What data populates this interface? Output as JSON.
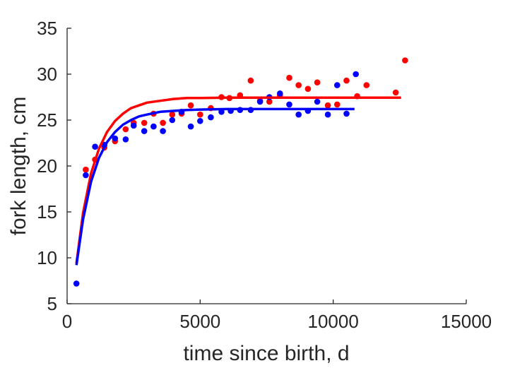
{
  "chart_data": {
    "type": "scatter",
    "xlabel": "time since birth, d",
    "ylabel": "fork length, cm",
    "xlim": [
      0,
      15000
    ],
    "ylim": [
      5,
      35
    ],
    "xticks": [
      0,
      5000,
      10000,
      15000
    ],
    "yticks": [
      5,
      10,
      15,
      20,
      25,
      30,
      35
    ],
    "grid": false,
    "legend": "none",
    "series": [
      {
        "color": "#ff0000",
        "points": {
          "x": [
            700,
            1050,
            1400,
            1800,
            2200,
            2500,
            2900,
            3250,
            3600,
            3950,
            4300,
            4650,
            5000,
            5400,
            5800,
            6100,
            6500,
            6900,
            7250,
            7600,
            8000,
            8350,
            8700,
            9050,
            9400,
            9800,
            10150,
            10500,
            10900,
            11250,
            12350,
            12700
          ],
          "y": [
            19.6,
            20.7,
            22.0,
            22.7,
            24.0,
            24.7,
            24.7,
            25.7,
            24.7,
            25.6,
            25.7,
            26.6,
            25.6,
            26.3,
            27.5,
            27.4,
            27.7,
            29.3,
            27.1,
            27.0,
            27.7,
            29.6,
            28.8,
            28.4,
            29.1,
            26.6,
            26.7,
            29.3,
            27.6,
            28.8,
            28.0,
            31.5
          ]
        },
        "fit": {
          "x": [
            350,
            600,
            900,
            1200,
            1500,
            1800,
            2100,
            2400,
            2700,
            3000,
            3500,
            4000,
            4500,
            5000,
            6000,
            7000,
            8000,
            10000,
            12550
          ],
          "y": [
            9.4,
            14.9,
            19.2,
            21.9,
            23.7,
            24.9,
            25.7,
            26.3,
            26.6,
            26.9,
            27.1,
            27.3,
            27.4,
            27.4,
            27.45,
            27.45,
            27.45,
            27.45,
            27.45
          ]
        }
      },
      {
        "color": "#0000ff",
        "points": {
          "x": [
            350,
            700,
            1050,
            1400,
            1800,
            2200,
            2500,
            2900,
            3250,
            3600,
            3950,
            4300,
            4650,
            5000,
            5400,
            5800,
            6150,
            6500,
            6900,
            7250,
            7600,
            8000,
            8350,
            8700,
            9050,
            9400,
            9800,
            10150,
            10500,
            10850
          ],
          "y": [
            7.2,
            19.0,
            22.1,
            22.3,
            23.0,
            22.9,
            24.4,
            23.8,
            24.3,
            23.8,
            25.0,
            25.9,
            24.3,
            24.9,
            25.3,
            25.9,
            26.0,
            26.1,
            26.1,
            27.0,
            27.5,
            27.9,
            26.7,
            25.6,
            26.0,
            27.0,
            25.6,
            28.8,
            25.7,
            30.0
          ]
        },
        "fit": {
          "x": [
            350,
            600,
            900,
            1200,
            1500,
            1800,
            2100,
            2400,
            2700,
            3000,
            3500,
            4000,
            4500,
            5000,
            6000,
            7000,
            8000,
            9000,
            10800
          ],
          "y": [
            9.2,
            14.2,
            18.3,
            20.9,
            22.6,
            23.7,
            24.5,
            25.0,
            25.4,
            25.6,
            25.9,
            26.0,
            26.1,
            26.15,
            26.2,
            26.2,
            26.2,
            26.2,
            26.2
          ]
        }
      }
    ]
  }
}
